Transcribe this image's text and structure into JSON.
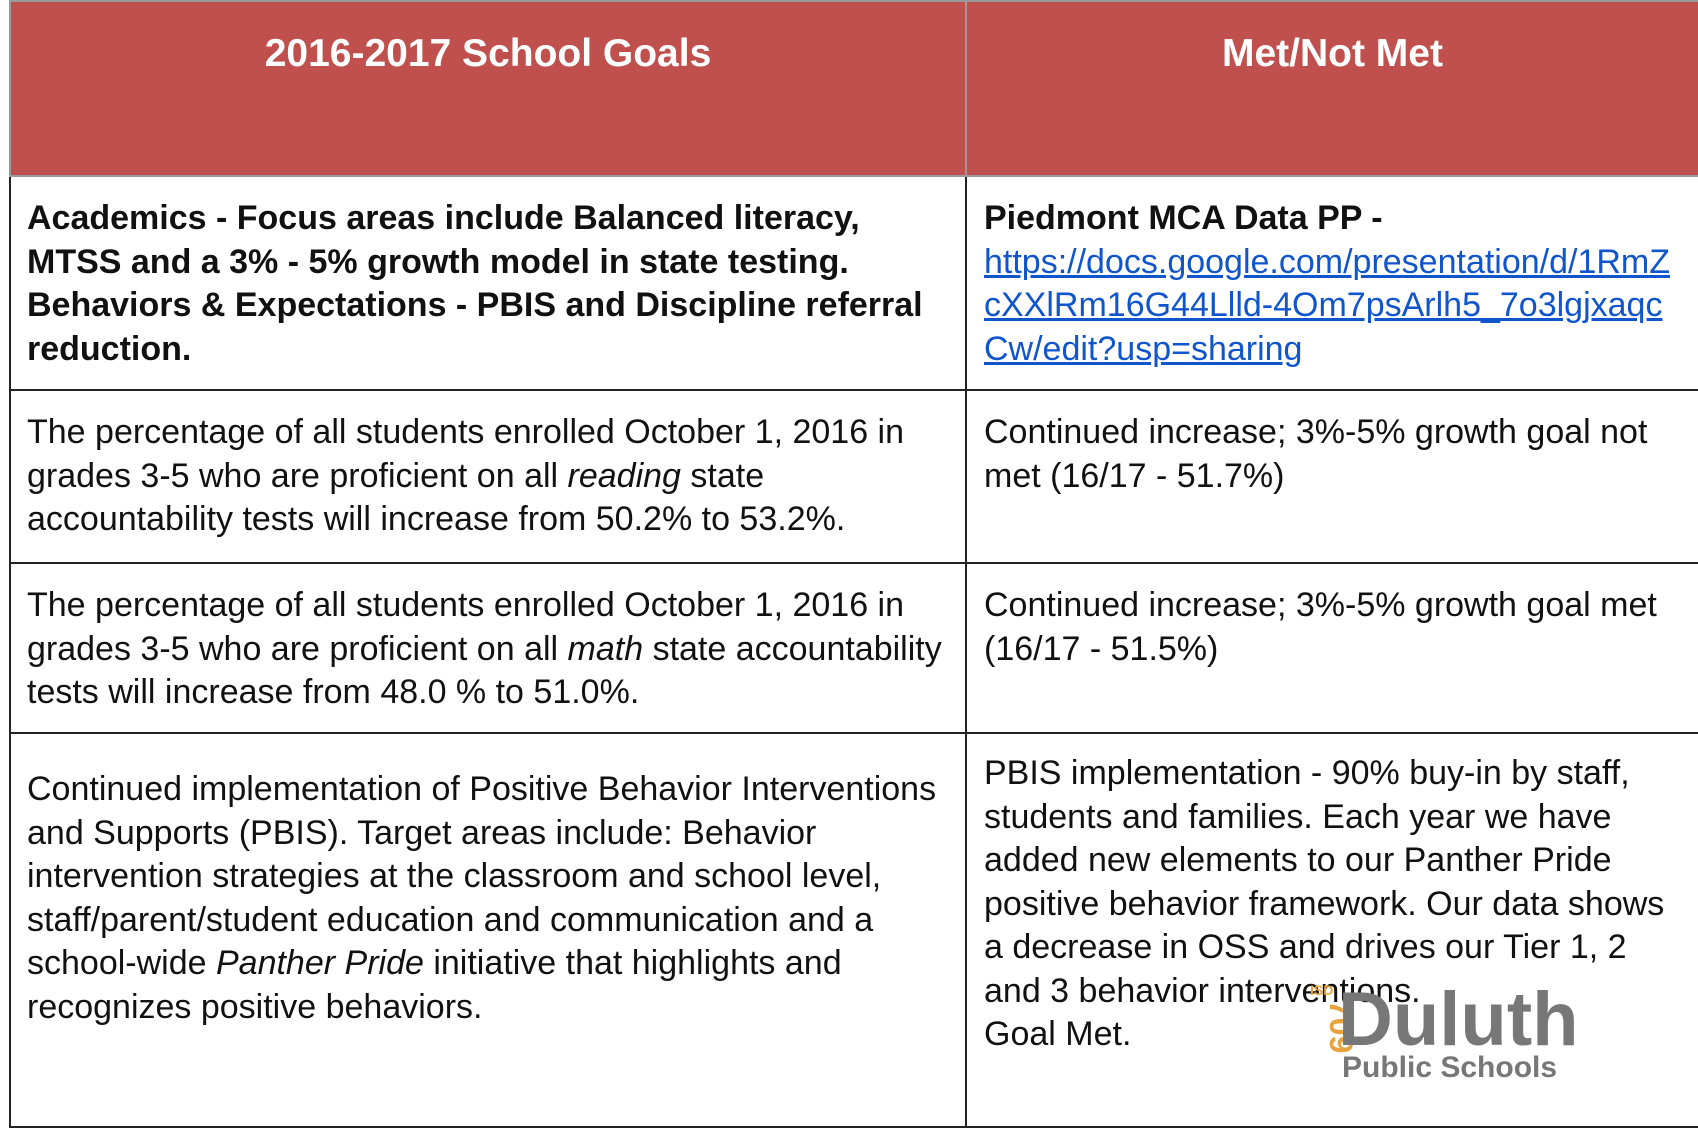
{
  "table": {
    "header": [
      "2016-2017 School Goals",
      "Met/Not Met"
    ],
    "rows": [
      [
        {
          "text": "Academics - Focus areas include Balanced literacy, MTSS and a 3% - 5% growth model in state testing. Behaviors & Expectations - PBIS and Discipline referral reduction."
        },
        {
          "label": "Piedmont MCA Data PP -",
          "link": "https://docs.google.com/presentation/d/1RmZcXXlRm16G44Llld-4Om7psArlh5_7o3lgjxaqcCw/edit?usp=sharing"
        }
      ],
      [
        {
          "before": "The percentage of all students enrolled October 1, 2016 in grades 3-5 who are proficient on all ",
          "em": "reading",
          "after": " state accountability tests will increase from 50.2% to 53.2%."
        },
        {
          "text": "Continued increase; 3%-5% growth goal not met (16/17 - 51.7%)"
        }
      ],
      [
        {
          "before": "The percentage of all students enrolled October 1, 2016 in grades 3-5 who are proficient on all ",
          "em": "math",
          "after": " state accountability tests will increase from 48.0 % to 51.0%."
        },
        {
          "text": "Continued increase; 3%-5% growth goal met (16/17 - 51.5%)"
        }
      ],
      [
        {
          "before": "Continued implementation of Positive Behavior Interventions and Supports (PBIS).  Target areas include: Behavior intervention strategies at the classroom and school level, staff/parent/student education and communication and a school-wide ",
          "em": "Panther Pride",
          "after": " initiative that highlights and recognizes positive behaviors."
        },
        {
          "text": "PBIS implementation - 90%  buy-in by staff, students and families.  Each year we have added new elements to our Panther Pride positive behavior framework.  Our data shows a decrease in OSS and drives our Tier 1, 2 and 3 behavior interventions.",
          "note": "Goal Met."
        }
      ]
    ]
  },
  "logo": {
    "isd": "ISD",
    "number": "709",
    "name": "Duluth",
    "sub": "Public Schools"
  }
}
